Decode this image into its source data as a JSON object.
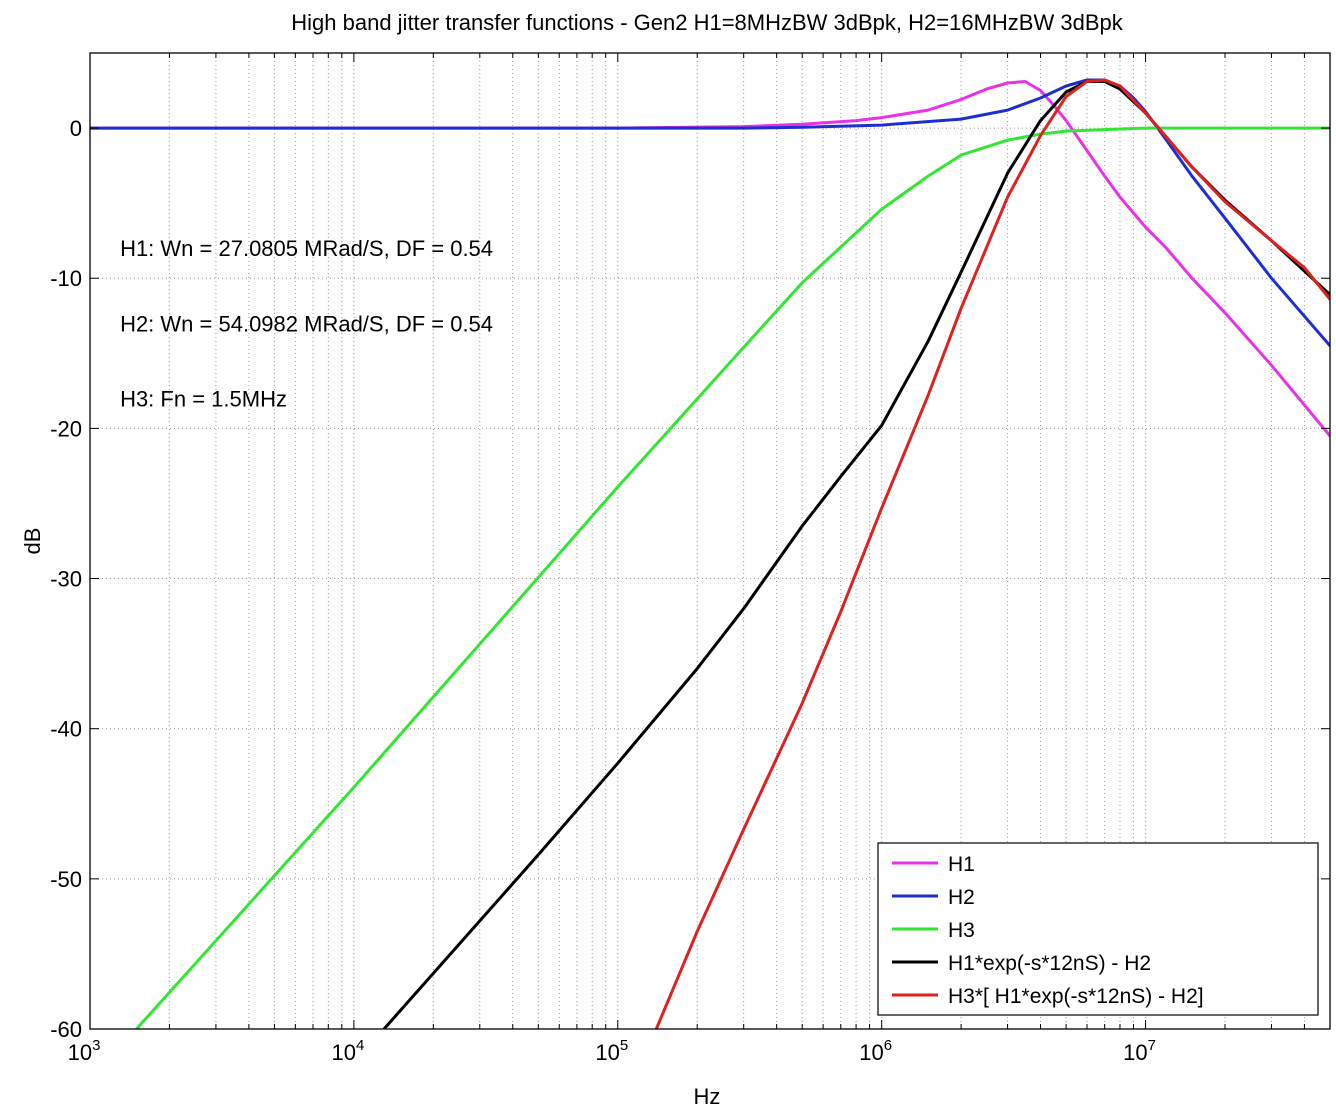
{
  "chart_data": {
    "type": "line",
    "title": "High band jitter transfer functions  - Gen2  H1=8MHzBW 3dBpk, H2=16MHzBW 3dBpk",
    "xlabel": "Hz",
    "ylabel": "dB",
    "xscale": "log",
    "xlim": [
      1000,
      50000000
    ],
    "ylim": [
      -60,
      5
    ],
    "grid": true,
    "legend_position": "bottom-right",
    "x_ticks": [
      {
        "value": 1000,
        "base": "10",
        "exp": "3"
      },
      {
        "value": 10000,
        "base": "10",
        "exp": "4"
      },
      {
        "value": 100000,
        "base": "10",
        "exp": "5"
      },
      {
        "value": 1000000,
        "base": "10",
        "exp": "6"
      },
      {
        "value": 10000000,
        "base": "10",
        "exp": "7"
      }
    ],
    "y_ticks": [
      {
        "value": 0,
        "label": "0"
      },
      {
        "value": -10,
        "label": "-10"
      },
      {
        "value": -20,
        "label": "-20"
      },
      {
        "value": -30,
        "label": "-30"
      },
      {
        "value": -40,
        "label": "-40"
      },
      {
        "value": -50,
        "label": "-50"
      },
      {
        "value": -60,
        "label": "-60"
      }
    ],
    "annotations": [
      {
        "text": "H1: Wn = 27.0805 MRad/S, DF = 0.54",
        "x": 1300,
        "y": -8
      },
      {
        "text": "H2: Wn = 54.0982 MRad/S, DF = 0.54",
        "x": 1300,
        "y": -13
      },
      {
        "text": "H3: Fn = 1.5MHz",
        "x": 1300,
        "y": -18
      }
    ],
    "series": [
      {
        "name": "H1",
        "color": "#e633e6",
        "x": [
          1000,
          100000,
          300000,
          500000,
          800000,
          1000000,
          1500000,
          2000000,
          2500000,
          3000000,
          3500000,
          4000000,
          4500000,
          5000000,
          6000000,
          7000000,
          8000000,
          10000000,
          12000000,
          15000000,
          20000000,
          30000000,
          50000000
        ],
        "y": [
          0,
          0,
          0.1,
          0.25,
          0.5,
          0.7,
          1.2,
          1.9,
          2.6,
          3.0,
          3.1,
          2.5,
          1.5,
          0.5,
          -1.5,
          -3.2,
          -4.6,
          -6.6,
          -8.0,
          -10.0,
          -12.3,
          -15.8,
          -20.5
        ]
      },
      {
        "name": "H2",
        "color": "#1f2fcf",
        "x": [
          1000,
          300000,
          500000,
          1000000,
          2000000,
          3000000,
          4000000,
          5000000,
          6000000,
          7000000,
          8000000,
          9000000,
          10000000,
          12000000,
          15000000,
          20000000,
          30000000,
          50000000
        ],
        "y": [
          0,
          0,
          0.05,
          0.2,
          0.6,
          1.2,
          2.0,
          2.8,
          3.2,
          3.2,
          2.8,
          2.0,
          1.1,
          -0.8,
          -3.2,
          -6.0,
          -10.0,
          -14.5
        ]
      },
      {
        "name": "H3",
        "color": "#33e633",
        "x": [
          1000,
          1500,
          10000,
          100000,
          300000,
          500000,
          1000000,
          1500000,
          2000000,
          3000000,
          4000000,
          5000000,
          7000000,
          10000000,
          50000000
        ],
        "y": [
          -63.5,
          -60,
          -43.9,
          -23.9,
          -14.6,
          -10.3,
          -5.4,
          -3.2,
          -1.8,
          -0.8,
          -0.4,
          -0.2,
          -0.1,
          0,
          0
        ]
      },
      {
        "name": "H1*exp(-s*12nS) - H2",
        "color": "#000000",
        "x": [
          13000,
          20000,
          50000,
          100000,
          200000,
          300000,
          500000,
          700000,
          1000000,
          1500000,
          2000000,
          3000000,
          4000000,
          5000000,
          6000000,
          7000000,
          8000000,
          10000000,
          12000000,
          15000000,
          20000000,
          30000000,
          50000000
        ],
        "y": [
          -60,
          -56.3,
          -48.4,
          -42.3,
          -36,
          -32,
          -26.5,
          -23.2,
          -19.8,
          -14.2,
          -9.6,
          -3,
          0.5,
          2.4,
          3.1,
          3.1,
          2.6,
          1.0,
          -0.6,
          -2.6,
          -4.8,
          -7.5,
          -11.1
        ]
      },
      {
        "name": "H3*[ H1*exp(-s*12nS) - H2]",
        "color": "#dd2222",
        "x": [
          140000,
          200000,
          300000,
          500000,
          700000,
          1000000,
          1500000,
          2000000,
          3000000,
          4000000,
          5000000,
          6000000,
          7000000,
          8000000,
          10000000,
          12000000,
          15000000,
          20000000,
          30000000,
          40000000,
          50000000
        ],
        "y": [
          -60,
          -53.5,
          -46.7,
          -38.3,
          -32.2,
          -25.3,
          -17.8,
          -12,
          -4.6,
          -0.5,
          2.1,
          3.1,
          3.2,
          2.8,
          1.0,
          -0.6,
          -2.6,
          -4.9,
          -7.5,
          -9.3,
          -11.4
        ]
      }
    ]
  }
}
